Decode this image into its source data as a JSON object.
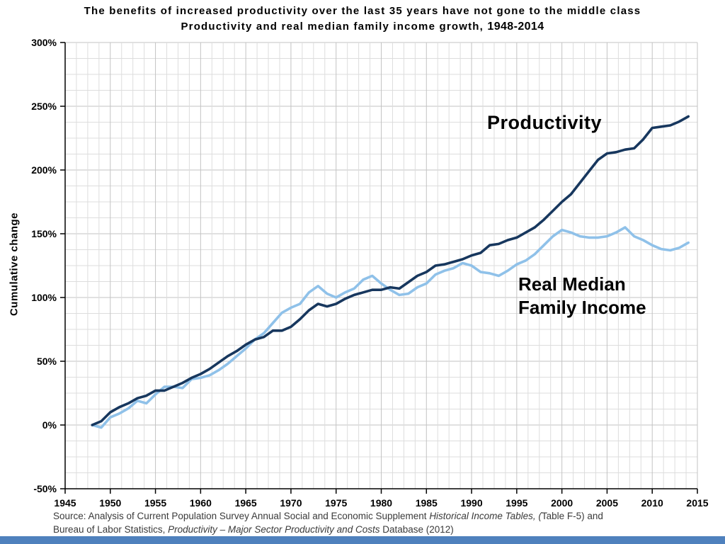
{
  "header": {
    "title_line1": "The benefits of increased productivity over the last 35 years have not gone to the middle class",
    "title_line2_a": "Productivity and real median family income growth, ",
    "title_line2_b": "1948-2014"
  },
  "source": {
    "line1": [
      {
        "text": "Source:  Analysis of Current Population Survey Annual Social and Economic Supplement "
      },
      {
        "text": "Historical Income Tables, ("
      },
      {
        "text": "Table F-5) and"
      }
    ],
    "line2": [
      {
        "text": "Bureau of Labor Statistics, "
      },
      {
        "text": "Productivity – Major Sector Productivity and Costs"
      },
      {
        "text": " Database (2012)"
      }
    ]
  },
  "footer": {
    "bar_color": "#4f81bd"
  },
  "chart_data": {
    "type": "line",
    "title": "Productivity and real median family income growth, 1948-2014",
    "subtitle": "The benefits of increased productivity over the last 35 years have not gone to the middle class",
    "xlabel": "",
    "ylabel": "Cumulative change",
    "xlim": [
      1945,
      2015
    ],
    "ylim": [
      -50,
      300
    ],
    "x_ticks": [
      1945,
      1950,
      1955,
      1960,
      1965,
      1970,
      1975,
      1980,
      1985,
      1990,
      1995,
      2000,
      2005,
      2010,
      2015
    ],
    "y_ticks": [
      300,
      250,
      200,
      150,
      100,
      50,
      0,
      -50
    ],
    "y_tick_labels": [
      "300%",
      "250%",
      "200%",
      "150%",
      "100%",
      "50%",
      "0%",
      "-50%"
    ],
    "grid": {
      "on": true,
      "x_minor": 1.25,
      "y_minor": 12.5
    },
    "colors": {
      "grid_minor": "#dddddd",
      "grid_major": "#c3c3c3",
      "axis": "#000000"
    },
    "legend_position": "annotations-on-chart",
    "annotations": [
      {
        "text": "Productivity"
      },
      {
        "text": "Real Median",
        "text2": "Family Income"
      }
    ],
    "x": [
      1948,
      1949,
      1950,
      1951,
      1952,
      1953,
      1954,
      1955,
      1956,
      1957,
      1958,
      1959,
      1960,
      1961,
      1962,
      1963,
      1964,
      1965,
      1966,
      1967,
      1968,
      1969,
      1970,
      1971,
      1972,
      1973,
      1974,
      1975,
      1976,
      1977,
      1978,
      1979,
      1980,
      1981,
      1982,
      1983,
      1984,
      1985,
      1986,
      1987,
      1988,
      1989,
      1990,
      1991,
      1992,
      1993,
      1994,
      1995,
      1996,
      1997,
      1998,
      1999,
      2000,
      2001,
      2002,
      2003,
      2004,
      2005,
      2006,
      2007,
      2008,
      2009,
      2010,
      2011,
      2012,
      2013,
      2014
    ],
    "series": [
      {
        "name": "Real Median Family Income",
        "color": "#8fc1e9",
        "values": [
          0,
          -2,
          6,
          9,
          13,
          19,
          17,
          24,
          30,
          30,
          29,
          36,
          37,
          39,
          43,
          48,
          54,
          60,
          67,
          72,
          80,
          88,
          92,
          95,
          104,
          109,
          103,
          100,
          104,
          107,
          114,
          117,
          111,
          106,
          102,
          103,
          108,
          111,
          118,
          121,
          123,
          127,
          125,
          120,
          119,
          117,
          121,
          126,
          129,
          134,
          141,
          148,
          153,
          151,
          148,
          147,
          147,
          148,
          151,
          155,
          148,
          145,
          141,
          138,
          137,
          139,
          143
        ]
      },
      {
        "name": "Productivity",
        "color": "#17375e",
        "values": [
          0,
          3,
          10,
          14,
          17,
          21,
          23,
          27,
          27,
          30,
          33,
          37,
          40,
          44,
          49,
          54,
          58,
          63,
          67,
          69,
          74,
          74,
          77,
          83,
          90,
          95,
          93,
          95,
          99,
          102,
          104,
          106,
          106,
          108,
          107,
          112,
          117,
          120,
          125,
          126,
          128,
          130,
          133,
          135,
          141,
          142,
          145,
          147,
          151,
          155,
          161,
          168,
          175,
          181,
          190,
          199,
          208,
          213,
          214,
          216,
          217,
          224,
          233,
          234,
          235,
          238,
          242
        ]
      }
    ]
  }
}
